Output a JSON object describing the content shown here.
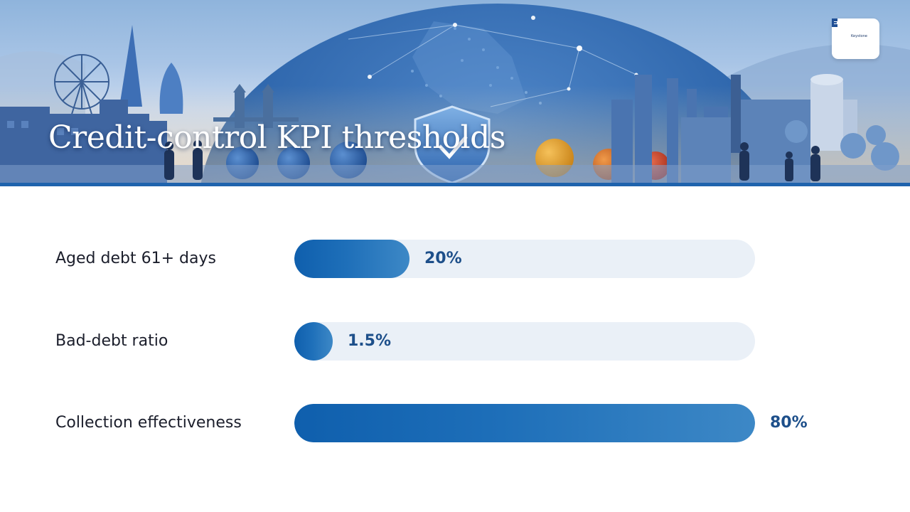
{
  "slide": {
    "title": "Credit-control KPI thresholds",
    "logo_text": "Keystone"
  },
  "colors": {
    "bar_fill_start": "#0f5fad",
    "bar_fill_end": "#3d88c6",
    "track": "#eaf0f7",
    "value_text": "#1d4f8a",
    "banner_rule": "#1f63ad"
  },
  "chart_data": {
    "type": "bar",
    "orientation": "horizontal",
    "title": "",
    "categories": [
      "Aged debt 61+ days",
      "Bad-debt ratio",
      "Collection effectiveness"
    ],
    "values": [
      20,
      1.5,
      80
    ],
    "value_labels": [
      "20%",
      "1.5%",
      "80%"
    ],
    "xlim": [
      0,
      80
    ],
    "grid": false
  }
}
